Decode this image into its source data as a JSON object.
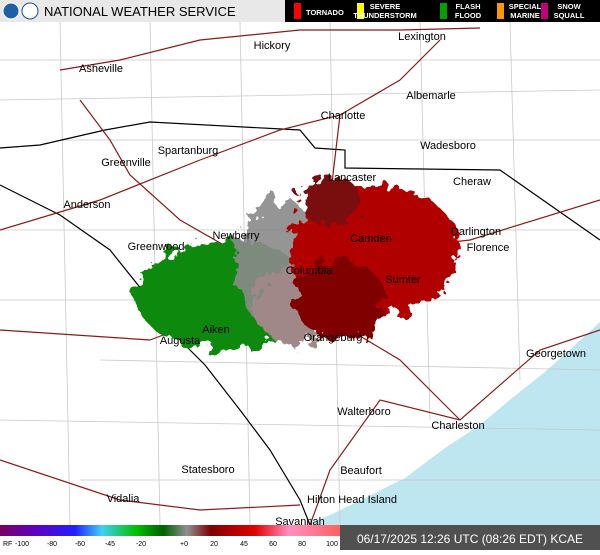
{
  "header": {
    "title": "NATIONAL WEATHER SERVICE"
  },
  "warnings": [
    {
      "label": [
        "TORNADO"
      ],
      "color": "#ff0000"
    },
    {
      "label": [
        "SEVERE",
        "THUNDERSTORM"
      ],
      "color": "#ffff00"
    },
    {
      "label": [
        "FLASH",
        "FLOOD"
      ],
      "color": "#00a000"
    },
    {
      "label": [
        "SPECIAL",
        "MARINE"
      ],
      "color": "#ff9900"
    },
    {
      "label": [
        "SNOW",
        "SQUALL"
      ],
      "color": "#c0007c"
    }
  ],
  "cities": [
    "Hickory",
    "Lexington",
    "Asheville",
    "Albemarle",
    "Charlotte",
    "Spartanburg",
    "Wadesboro",
    "Greenville",
    "Lancaster",
    "Cheraw",
    "Anderson",
    "Newberry",
    "Camden",
    "Darlington",
    "Florence",
    "Greenwood",
    "Columbia",
    "Sumter",
    "Aiken",
    "Augusta",
    "Orangeburg",
    "Georgetown",
    "Walterboro",
    "Charleston",
    "Statesboro",
    "Beaufort",
    "Vidalia",
    "Hilton Head Island",
    "Savannah"
  ],
  "scale": {
    "name": "RF",
    "labels": [
      "-100",
      "-80",
      "-60",
      "-45",
      "-20",
      "+0",
      "20",
      "45",
      "60",
      "80",
      "100"
    ]
  },
  "timestamp": "06/17/2025 12:26 UTC (08:26 EDT) KCAE"
}
